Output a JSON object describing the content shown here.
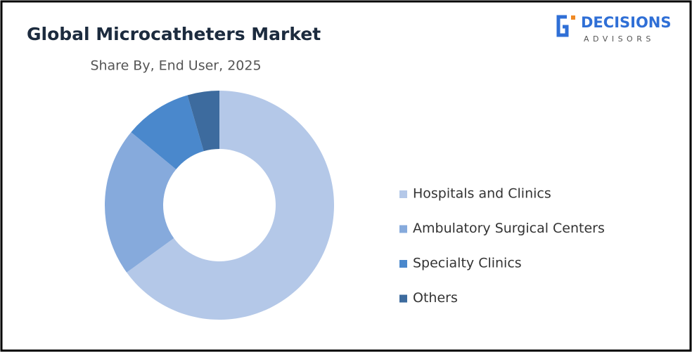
{
  "chart_data": {
    "type": "donut",
    "title": "Global Microcatheters Market",
    "subtitle": "Share By, End User, 2025",
    "categories": [
      "Hospitals and Clinics",
      "Ambulatory Surgical Centers",
      "Specialty Clinics",
      "Others"
    ],
    "values": [
      65,
      21,
      9.5,
      4.5
    ],
    "colors": [
      "#b4c8e8",
      "#86aadc",
      "#4a88cc",
      "#3d6b9e"
    ],
    "legend": "right"
  },
  "logo": {
    "name": "DECISIONS",
    "tagline": "ADVISORS"
  }
}
